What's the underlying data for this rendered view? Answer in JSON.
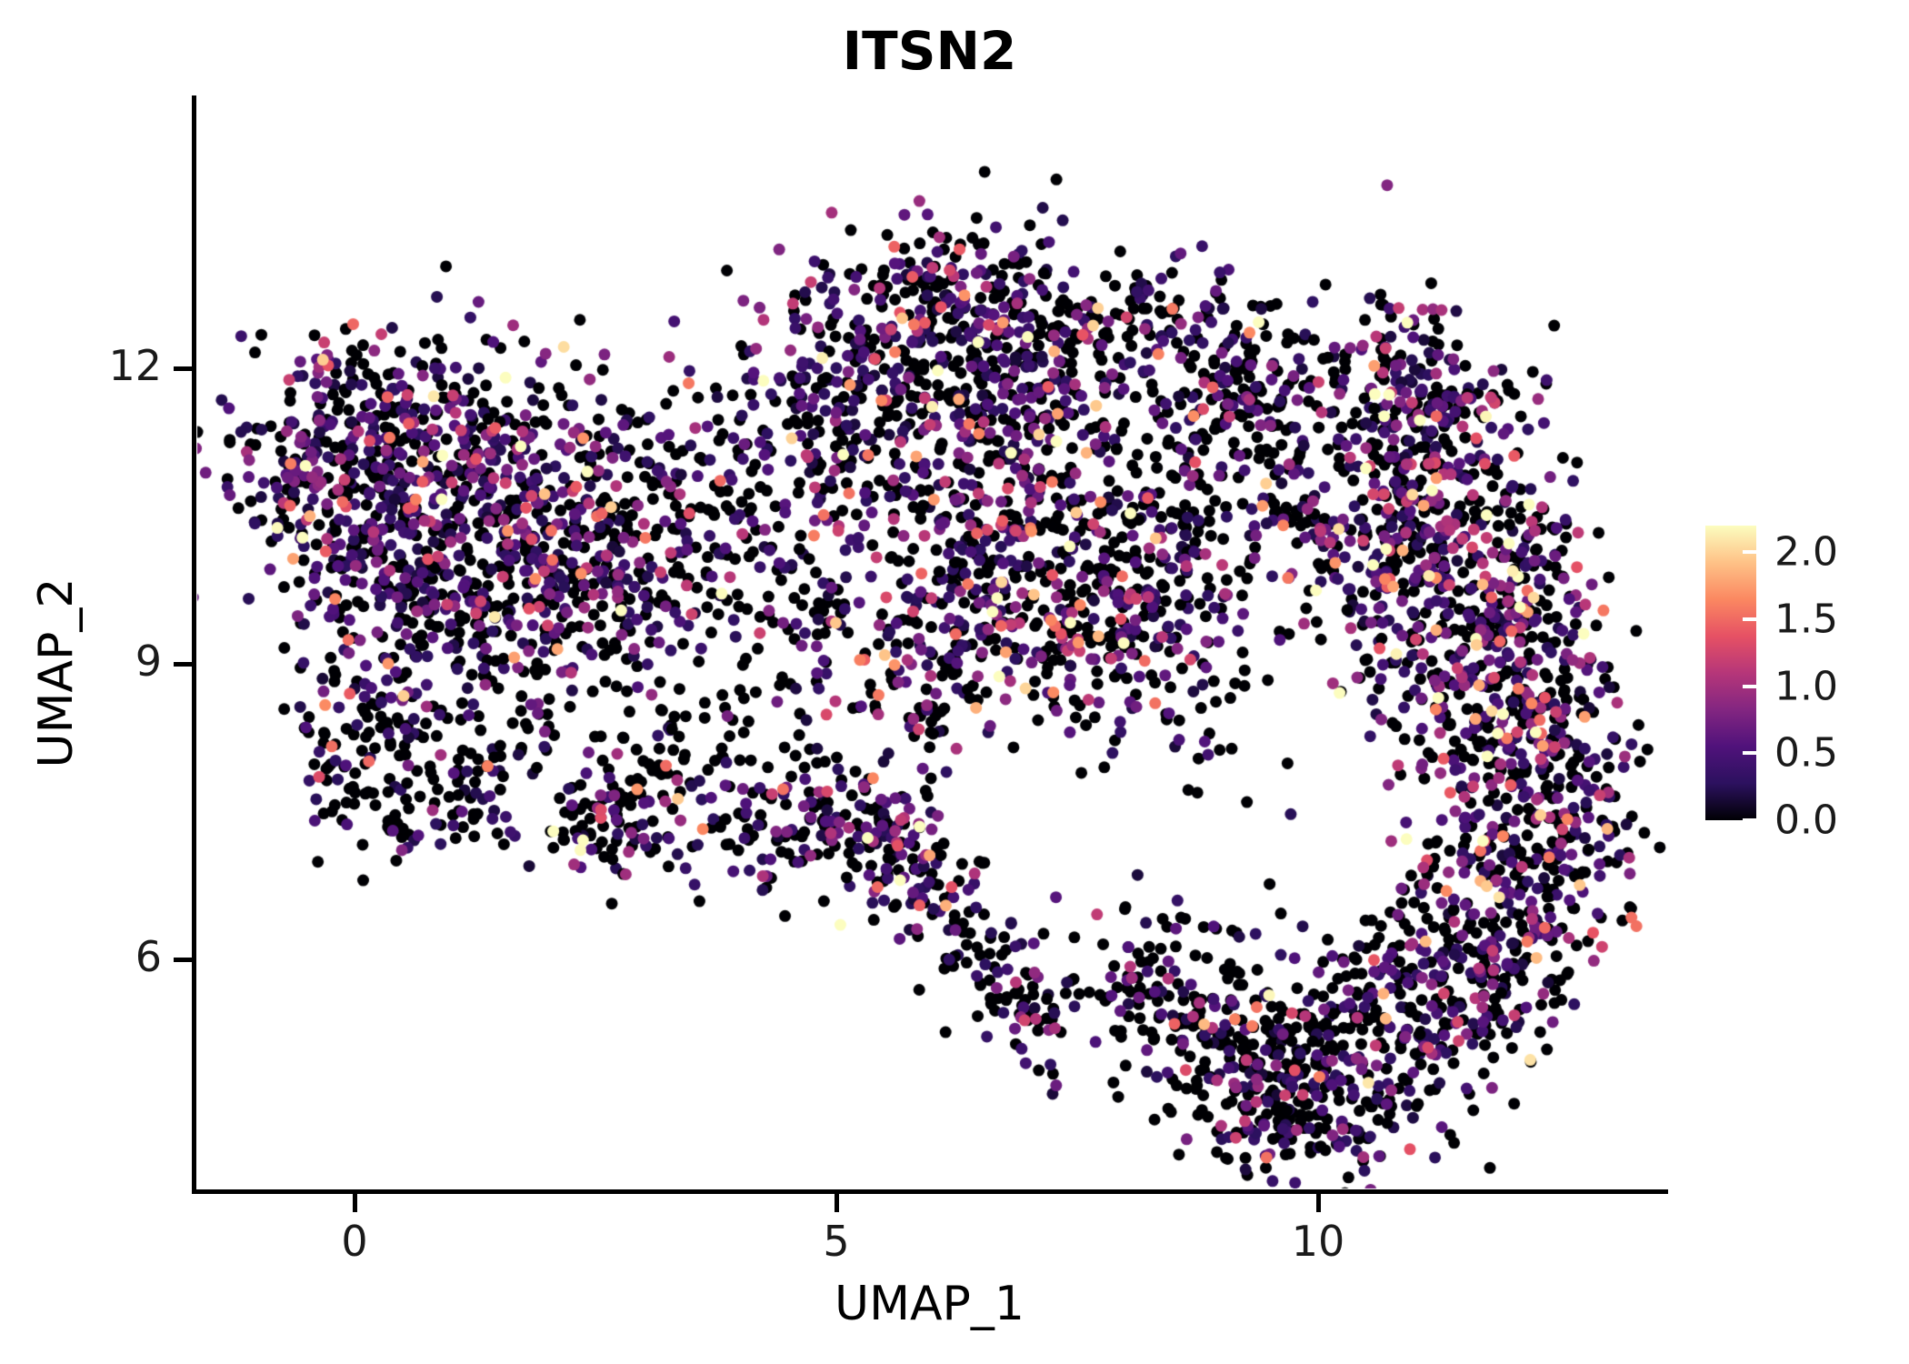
{
  "chart_data": {
    "type": "scatter",
    "title": "ITSN2",
    "xlabel": "UMAP_1",
    "ylabel": "UMAP_2",
    "x_ticks": [
      "0",
      "5",
      "10"
    ],
    "x_tick_values": [
      0,
      5,
      10
    ],
    "y_ticks": [
      "12",
      "9",
      "6"
    ],
    "y_tick_values": [
      12,
      9,
      6
    ],
    "xlim": [
      -1.65,
      13.6
    ],
    "ylim": [
      3.65,
      14.45
    ],
    "grid": false,
    "legend_position": "right",
    "point_radius": 6.5,
    "seed": 7,
    "colorbar": {
      "title": "",
      "ticks": [
        "2.0",
        "1.5",
        "1.0",
        "0.5",
        "0.0"
      ],
      "tick_values": [
        2.0,
        1.5,
        1.0,
        0.5,
        0.0
      ],
      "vmin": 0.0,
      "vmax": 2.2,
      "colormap": "magma",
      "stops": [
        [
          0.0,
          "#000004"
        ],
        [
          0.125,
          "#2c115f"
        ],
        [
          0.25,
          "#50127b"
        ],
        [
          0.375,
          "#832681"
        ],
        [
          0.5,
          "#b63679"
        ],
        [
          0.625,
          "#e65164"
        ],
        [
          0.75,
          "#fb8861"
        ],
        [
          0.875,
          "#fec287"
        ],
        [
          1.0,
          "#fcfdbf"
        ]
      ]
    },
    "cluster_fields": [
      "center_x",
      "center_y",
      "spread_x",
      "spread_y",
      "n_points",
      "p_zero_expression",
      "expression_scale"
    ],
    "clusters": [
      [
        -0.6,
        10.9,
        0.45,
        0.6,
        110,
        0.45,
        0.7
      ],
      [
        0.3,
        10.6,
        0.55,
        0.7,
        170,
        0.45,
        0.7
      ],
      [
        1.3,
        11.2,
        0.8,
        0.6,
        210,
        0.45,
        0.72
      ],
      [
        2.1,
        10.7,
        0.7,
        0.6,
        190,
        0.45,
        0.75
      ],
      [
        1.2,
        10.0,
        0.8,
        0.5,
        170,
        0.5,
        0.7
      ],
      [
        2.6,
        9.9,
        0.6,
        0.5,
        110,
        0.5,
        0.7
      ],
      [
        0.5,
        9.5,
        0.5,
        0.5,
        90,
        0.55,
        0.6
      ],
      [
        1.7,
        9.3,
        0.6,
        0.4,
        80,
        0.55,
        0.6
      ],
      [
        0.0,
        11.6,
        0.5,
        0.4,
        70,
        0.5,
        0.65
      ],
      [
        0.2,
        8.5,
        0.45,
        0.3,
        55,
        0.6,
        0.55
      ],
      [
        0.0,
        7.9,
        0.3,
        0.4,
        50,
        0.6,
        0.55
      ],
      [
        0.8,
        7.5,
        0.5,
        0.3,
        60,
        0.6,
        0.55
      ],
      [
        1.5,
        8.0,
        0.35,
        0.4,
        45,
        0.65,
        0.5
      ],
      [
        2.6,
        7.4,
        0.35,
        0.3,
        85,
        0.5,
        0.7
      ],
      [
        3.2,
        7.9,
        0.3,
        0.35,
        40,
        0.6,
        0.5
      ],
      [
        3.5,
        10.8,
        0.5,
        0.55,
        60,
        0.55,
        0.6
      ],
      [
        4.2,
        11.2,
        0.5,
        0.5,
        60,
        0.55,
        0.6
      ],
      [
        3.9,
        9.8,
        0.5,
        0.5,
        45,
        0.6,
        0.55
      ],
      [
        4.6,
        9.0,
        0.5,
        0.5,
        40,
        0.6,
        0.55
      ],
      [
        3.3,
        9.0,
        0.45,
        0.55,
        30,
        0.6,
        0.5
      ],
      [
        4.2,
        7.5,
        0.45,
        0.5,
        80,
        0.5,
        0.7
      ],
      [
        5.0,
        7.3,
        0.4,
        0.4,
        70,
        0.5,
        0.7
      ],
      [
        5.6,
        7.2,
        0.33,
        0.33,
        75,
        0.45,
        0.8
      ],
      [
        5.6,
        12.3,
        0.7,
        0.55,
        150,
        0.5,
        0.7
      ],
      [
        6.4,
        12.6,
        0.6,
        0.5,
        140,
        0.5,
        0.7
      ],
      [
        7.0,
        12.1,
        0.6,
        0.55,
        130,
        0.5,
        0.7
      ],
      [
        6.0,
        11.5,
        0.7,
        0.5,
        120,
        0.5,
        0.7
      ],
      [
        5.0,
        11.4,
        0.5,
        0.5,
        80,
        0.55,
        0.6
      ],
      [
        5.2,
        9.9,
        0.5,
        0.7,
        40,
        0.6,
        0.5
      ],
      [
        6.3,
        10.3,
        0.7,
        0.5,
        130,
        0.5,
        0.72
      ],
      [
        7.1,
        10.6,
        0.6,
        0.5,
        110,
        0.5,
        0.72
      ],
      [
        6.6,
        9.5,
        0.7,
        0.5,
        130,
        0.5,
        0.75
      ],
      [
        7.5,
        9.2,
        0.6,
        0.5,
        120,
        0.5,
        0.75
      ],
      [
        8.2,
        9.7,
        0.5,
        0.5,
        100,
        0.5,
        0.7
      ],
      [
        8.6,
        10.4,
        0.45,
        0.5,
        80,
        0.55,
        0.65
      ],
      [
        5.9,
        8.7,
        0.4,
        0.4,
        55,
        0.55,
        0.7
      ],
      [
        8.0,
        12.4,
        0.55,
        0.45,
        100,
        0.55,
        0.6
      ],
      [
        8.9,
        12.1,
        0.6,
        0.5,
        110,
        0.55,
        0.6
      ],
      [
        9.6,
        11.6,
        0.45,
        0.5,
        70,
        0.55,
        0.6
      ],
      [
        8.8,
        11.2,
        0.5,
        0.4,
        55,
        0.6,
        0.6
      ],
      [
        9.8,
        10.3,
        0.5,
        0.6,
        35,
        0.6,
        0.55
      ],
      [
        8.9,
        8.6,
        0.4,
        0.5,
        30,
        0.6,
        0.55
      ],
      [
        10.9,
        12.2,
        0.35,
        0.4,
        55,
        0.5,
        0.8
      ],
      [
        11.3,
        11.6,
        0.4,
        0.4,
        65,
        0.5,
        0.85
      ],
      [
        10.8,
        11.1,
        0.5,
        0.5,
        85,
        0.5,
        0.8
      ],
      [
        11.6,
        11.0,
        0.5,
        0.5,
        95,
        0.45,
        0.9
      ],
      [
        11.1,
        10.3,
        0.5,
        0.5,
        110,
        0.45,
        0.85
      ],
      [
        11.9,
        10.1,
        0.5,
        0.5,
        105,
        0.45,
        0.85
      ],
      [
        11.4,
        9.4,
        0.55,
        0.5,
        115,
        0.45,
        0.85
      ],
      [
        12.2,
        9.2,
        0.45,
        0.5,
        100,
        0.45,
        0.85
      ],
      [
        11.7,
        8.5,
        0.55,
        0.5,
        115,
        0.45,
        0.8
      ],
      [
        12.5,
        8.2,
        0.35,
        0.5,
        80,
        0.5,
        0.8
      ],
      [
        11.9,
        7.4,
        0.5,
        0.5,
        105,
        0.5,
        0.8
      ],
      [
        12.4,
        6.8,
        0.4,
        0.45,
        80,
        0.5,
        0.75
      ],
      [
        11.6,
        6.4,
        0.5,
        0.45,
        85,
        0.5,
        0.7
      ],
      [
        12.0,
        5.8,
        0.4,
        0.4,
        70,
        0.55,
        0.7
      ],
      [
        11.3,
        5.4,
        0.45,
        0.4,
        70,
        0.55,
        0.65
      ],
      [
        10.6,
        9.6,
        0.4,
        0.5,
        55,
        0.55,
        0.7
      ],
      [
        10.4,
        10.6,
        0.4,
        0.4,
        45,
        0.55,
        0.7
      ],
      [
        12.8,
        7.6,
        0.25,
        0.5,
        45,
        0.5,
        0.75
      ],
      [
        8.4,
        5.4,
        0.5,
        0.5,
        75,
        0.65,
        0.5
      ],
      [
        9.1,
        5.2,
        0.5,
        0.5,
        95,
        0.6,
        0.55
      ],
      [
        9.8,
        4.9,
        0.5,
        0.45,
        105,
        0.6,
        0.55
      ],
      [
        10.5,
        4.6,
        0.5,
        0.4,
        95,
        0.6,
        0.6
      ],
      [
        9.4,
        4.4,
        0.5,
        0.35,
        75,
        0.6,
        0.55
      ],
      [
        10.2,
        5.4,
        0.5,
        0.45,
        85,
        0.6,
        0.6
      ],
      [
        10.9,
        6.0,
        0.4,
        0.4,
        55,
        0.55,
        0.65
      ],
      [
        7.9,
        6.1,
        0.3,
        0.4,
        30,
        0.6,
        0.5
      ],
      [
        6.0,
        6.7,
        0.3,
        0.3,
        35,
        0.55,
        0.6
      ],
      [
        6.4,
        6.2,
        0.3,
        0.3,
        35,
        0.55,
        0.6
      ],
      [
        6.8,
        5.8,
        0.3,
        0.3,
        35,
        0.55,
        0.6
      ],
      [
        7.1,
        5.3,
        0.25,
        0.3,
        28,
        0.6,
        0.5
      ]
    ]
  }
}
